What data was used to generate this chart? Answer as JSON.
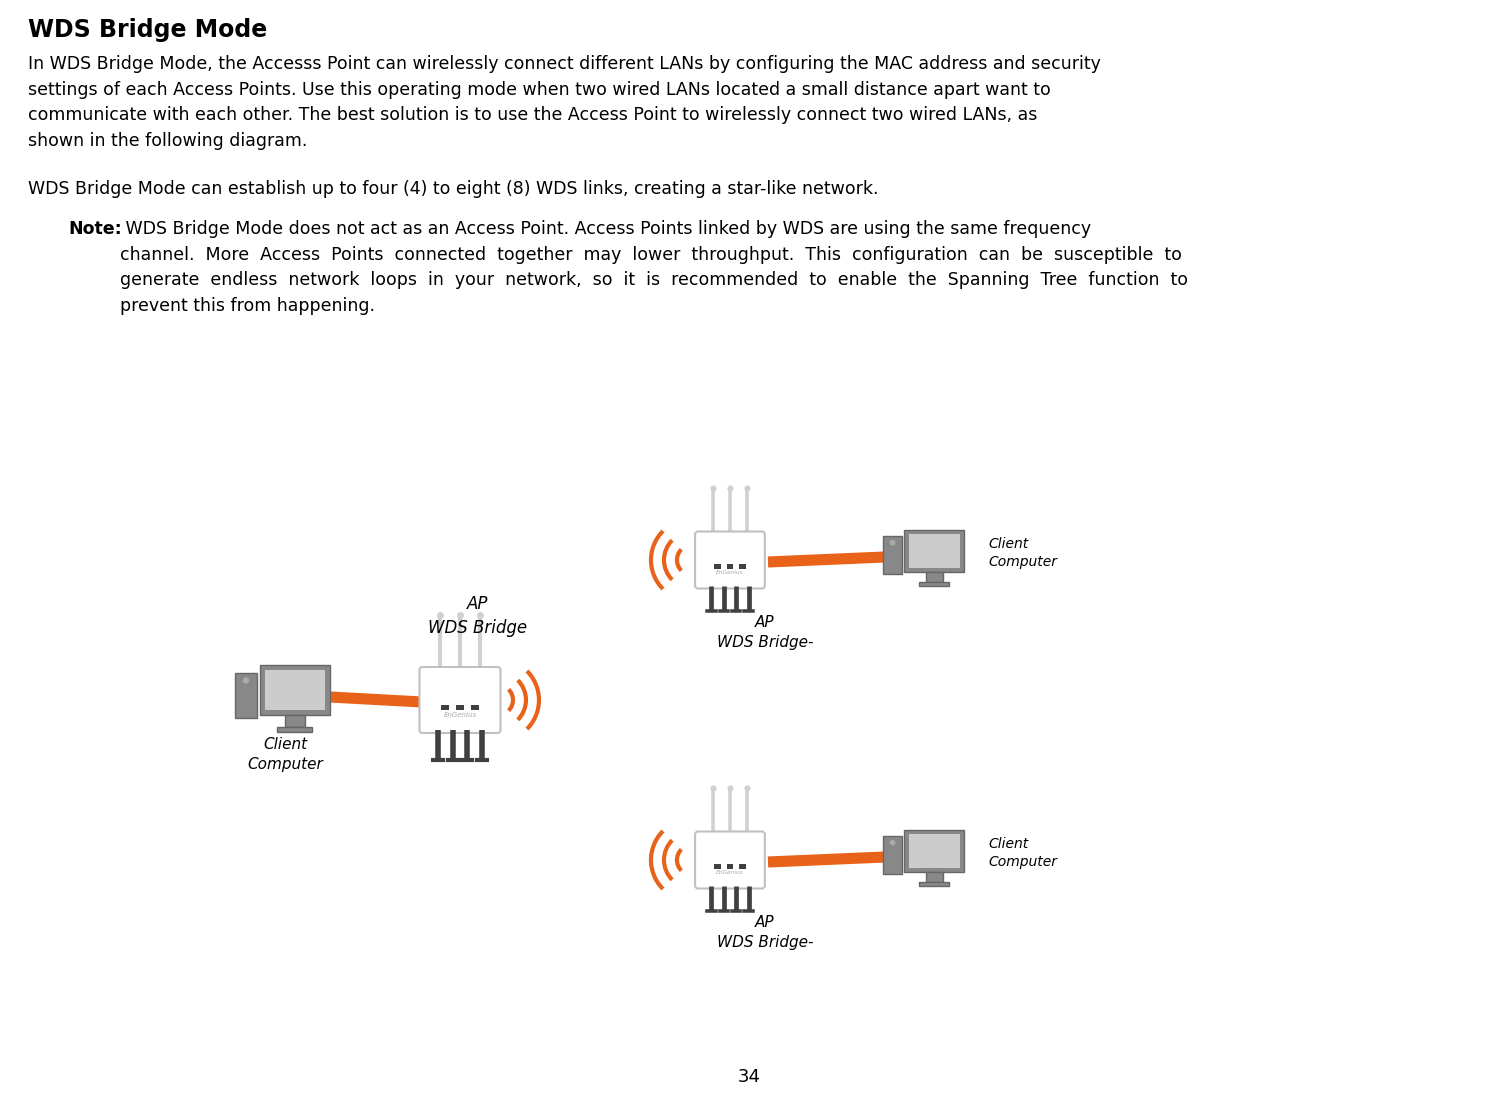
{
  "title": "WDS Bridge Mode",
  "bg_color": "#ffffff",
  "text_color": "#000000",
  "orange_color": "#E8621A",
  "gray_color": "#808080",
  "light_gray": "#c0c0c0",
  "dark_gray": "#505050",
  "paragraph1": "In WDS Bridge Mode, the Accesss Point can wirelessly connect different LANs by configuring the MAC address and security\nsettings of each Access Points. Use this operating mode when two wired LANs located a small distance apart want to\ncommunicate with each other. The best solution is to use the Access Point to wirelessly connect two wired LANs, as\nshown in the following diagram.",
  "paragraph2": "WDS Bridge Mode can establish up to four (4) to eight (8) WDS links, creating a star-like network.",
  "note_bold": "Note:",
  "note_text": " WDS Bridge Mode does not act as an Access Point. Access Points linked by WDS are using the same frequency\nchannel.  More  Access  Points  connected  together  may  lower  throughput.  This  configuration  can  be  susceptible  to\ngenerate  endless  network  loops  in  your  network,  so  it  is  recommended  to  enable  the  Spanning  Tree  function  to\nprevent this from happening.",
  "page_number": "34",
  "left_ap_label": "AP\nWDS Bridge",
  "right_top_ap_label": "AP\nWDS Bridge-",
  "right_bottom_ap_label": "AP\nWDS Bridge-",
  "client_label": "Client\nComputer"
}
